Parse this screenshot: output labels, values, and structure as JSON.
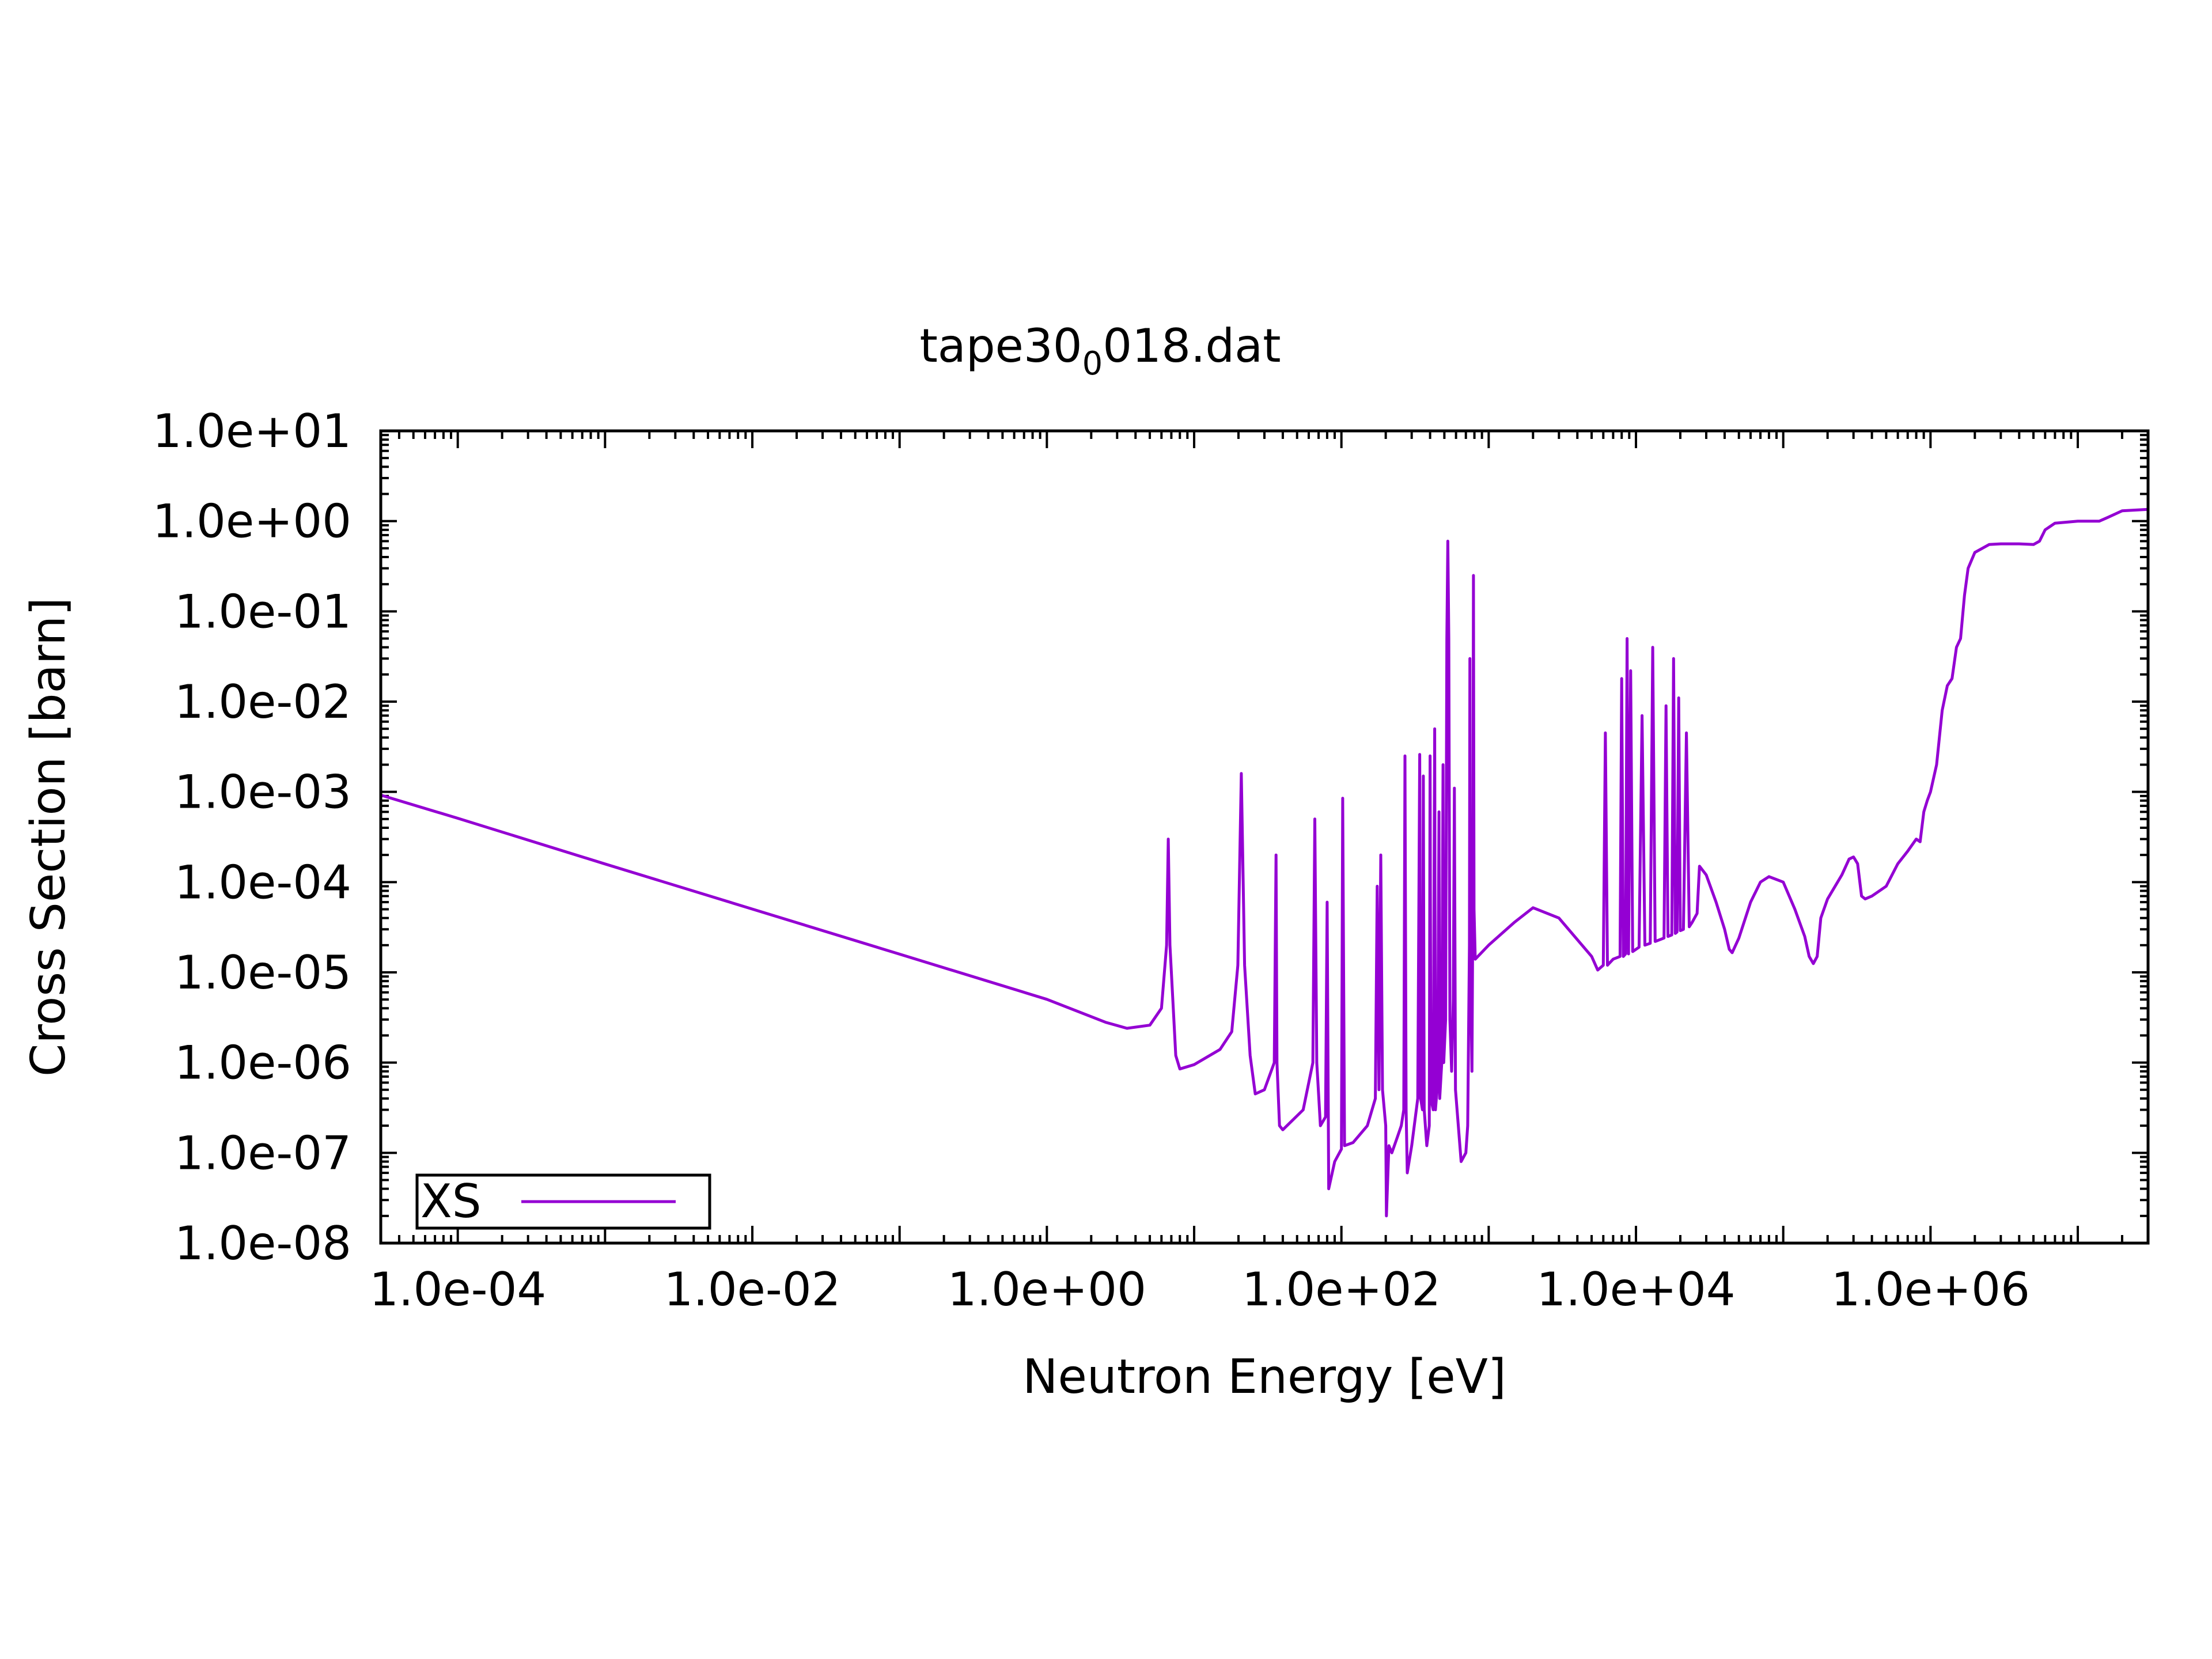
{
  "chart_data": {
    "type": "line",
    "title": "tape30",
    "title_subscript": "0",
    "title_suffix": "018.dat",
    "xlabel": "Neutron Energy [eV]",
    "ylabel": "Cross Section [barn]",
    "xscale": "log",
    "yscale": "log",
    "xlim": [
      3e-05,
      30000000
    ],
    "ylim": [
      1e-08,
      10
    ],
    "grid": false,
    "legend_position": "bottom-left",
    "x_tick_labels": [
      "1.0e-04",
      "1.0e-02",
      "1.0e+00",
      "1.0e+02",
      "1.0e+04",
      "1.0e+06"
    ],
    "x_tick_values": [
      0.0001,
      0.01,
      1,
      100,
      10000,
      1000000
    ],
    "y_tick_labels": [
      "1.0e+01",
      "1.0e+00",
      "1.0e-01",
      "1.0e-02",
      "1.0e-03",
      "1.0e-04",
      "1.0e-05",
      "1.0e-06",
      "1.0e-07",
      "1.0e-08"
    ],
    "y_tick_values": [
      10,
      1,
      0.1,
      0.01,
      0.001,
      0.0001,
      1e-05,
      1e-06,
      1e-07,
      1e-08
    ],
    "series": [
      {
        "name": "XS",
        "color": "#9400d3",
        "points": [
          [
            3e-05,
            0.00092
          ],
          [
            0.0001,
            0.00051
          ],
          [
            0.001,
            0.000159
          ],
          [
            0.01,
            5.03e-05
          ],
          [
            0.1,
            1.59e-05
          ],
          [
            1.0,
            5.03e-06
          ],
          [
            2.5,
            2.8e-06
          ],
          [
            3.5,
            2.4e-06
          ],
          [
            5.0,
            2.6e-06
          ],
          [
            6.0,
            4e-06
          ],
          [
            6.5,
            2e-05
          ],
          [
            6.67,
            0.0003
          ],
          [
            6.85,
            2e-05
          ],
          [
            7.5,
            1.2e-06
          ],
          [
            8.0,
            8.5e-07
          ],
          [
            10,
            9.5e-07
          ],
          [
            15,
            1.4e-06
          ],
          [
            18,
            2.2e-06
          ],
          [
            19.8,
            1.2e-05
          ],
          [
            20.9,
            0.0016
          ],
          [
            22,
            1.2e-05
          ],
          [
            24,
            1.2e-06
          ],
          [
            26,
            4.5e-07
          ],
          [
            30,
            5e-07
          ],
          [
            35,
            1e-06
          ],
          [
            36,
            0.0002
          ],
          [
            36.5,
            1e-06
          ],
          [
            38,
            2e-07
          ],
          [
            40,
            1.8e-07
          ],
          [
            55,
            3e-07
          ],
          [
            64,
            1e-06
          ],
          [
            66,
            0.0005
          ],
          [
            68,
            1e-06
          ],
          [
            72,
            2e-07
          ],
          [
            78,
            2.5e-07
          ],
          [
            80,
            6e-05
          ],
          [
            82,
            4e-08
          ],
          [
            90,
            8e-08
          ],
          [
            100,
            1.1e-07
          ],
          [
            102,
            0.00085
          ],
          [
            105,
            1.2e-07
          ],
          [
            120,
            1.3e-07
          ],
          [
            150,
            2e-07
          ],
          [
            170,
            4e-07
          ],
          [
            175,
            9e-05
          ],
          [
            180,
            5e-07
          ],
          [
            185,
            0.0002
          ],
          [
            190,
            5e-07
          ],
          [
            200,
            2e-07
          ],
          [
            202,
            2e-08
          ],
          [
            210,
            1.2e-07
          ],
          [
            220,
            1e-07
          ],
          [
            240,
            1.5e-07
          ],
          [
            255,
            2e-07
          ],
          [
            265,
            3e-07
          ],
          [
            270,
            0.0025
          ],
          [
            275,
            3e-07
          ],
          [
            280,
            6e-08
          ],
          [
            300,
            1.2e-07
          ],
          [
            330,
            4e-07
          ],
          [
            340,
            0.0026
          ],
          [
            345,
            4e-07
          ],
          [
            355,
            3e-07
          ],
          [
            360,
            0.0015
          ],
          [
            365,
            3e-07
          ],
          [
            380,
            1.2e-07
          ],
          [
            395,
            2e-07
          ],
          [
            400,
            0.0025
          ],
          [
            405,
            4e-07
          ],
          [
            420,
            3e-07
          ],
          [
            430,
            0.005
          ],
          [
            435,
            3e-07
          ],
          [
            450,
            6e-07
          ],
          [
            460,
            0.0006
          ],
          [
            465,
            4e-07
          ],
          [
            480,
            1e-06
          ],
          [
            490,
            0.002
          ],
          [
            495,
            1e-06
          ],
          [
            510,
            3e-06
          ],
          [
            520,
            0.05
          ],
          [
            528,
            0.6
          ],
          [
            536,
            0.05
          ],
          [
            545,
            3e-06
          ],
          [
            560,
            8e-07
          ],
          [
            575,
            5e-06
          ],
          [
            585,
            0.0011
          ],
          [
            595,
            5e-07
          ],
          [
            650,
            8e-08
          ],
          [
            700,
            1e-07
          ],
          [
            720,
            2e-07
          ],
          [
            740,
            2e-05
          ],
          [
            745,
            0.03
          ],
          [
            750,
            2e-05
          ],
          [
            770,
            8e-07
          ],
          [
            780,
            5e-05
          ],
          [
            788,
            0.25
          ],
          [
            795,
            5e-05
          ],
          [
            810,
            1.4e-05
          ],
          [
            1000,
            2e-05
          ],
          [
            1500,
            3.6e-05
          ],
          [
            2000,
            5.2e-05
          ],
          [
            3000,
            4e-05
          ],
          [
            5000,
            1.5e-05
          ],
          [
            5500,
            1.06e-05
          ],
          [
            6000,
            1.2e-05
          ],
          [
            6200,
            0.0045
          ],
          [
            6400,
            1.2e-05
          ],
          [
            7000,
            1.4e-05
          ],
          [
            7800,
            1.5e-05
          ],
          [
            8000,
            0.018
          ],
          [
            8200,
            1.5e-05
          ],
          [
            8500,
            1.6e-05
          ],
          [
            8700,
            0.05
          ],
          [
            8900,
            1.6e-05
          ],
          [
            9200,
            0.022
          ],
          [
            9500,
            1.7e-05
          ],
          [
            10500,
            1.9e-05
          ],
          [
            11000,
            0.007
          ],
          [
            11500,
            2e-05
          ],
          [
            12500,
            2.1e-05
          ],
          [
            13000,
            0.04
          ],
          [
            13500,
            2.2e-05
          ],
          [
            15500,
            2.4e-05
          ],
          [
            16000,
            0.009
          ],
          [
            16500,
            2.5e-05
          ],
          [
            17500,
            2.6e-05
          ],
          [
            18000,
            0.03
          ],
          [
            18500,
            2.7e-05
          ],
          [
            19000,
            2.8e-05
          ],
          [
            19500,
            0.011
          ],
          [
            20000,
            2.9e-05
          ],
          [
            21000,
            3e-05
          ],
          [
            22000,
            0.0045
          ],
          [
            23000,
            3.2e-05
          ],
          [
            24000,
            3.55e-05
          ],
          [
            26000,
            4.5e-05
          ],
          [
            27000,
            0.00015
          ],
          [
            30000,
            0.00012
          ],
          [
            35000,
            6e-05
          ],
          [
            40000,
            3e-05
          ],
          [
            43000,
            1.8e-05
          ],
          [
            45000,
            1.65e-05
          ],
          [
            50000,
            2.4e-05
          ],
          [
            60000,
            6e-05
          ],
          [
            70000,
            0.0001
          ],
          [
            80000,
            0.000115
          ],
          [
            100000,
            0.0001
          ],
          [
            120000,
            5e-05
          ],
          [
            140000,
            2.5e-05
          ],
          [
            150000,
            1.5e-05
          ],
          [
            160000,
            1.25e-05
          ],
          [
            170000,
            1.5e-05
          ],
          [
            180000,
            4e-05
          ],
          [
            200000,
            6.5e-05
          ],
          [
            250000,
            0.00012
          ],
          [
            280000,
            0.00018
          ],
          [
            300000,
            0.00019
          ],
          [
            320000,
            0.00016
          ],
          [
            340000,
            7e-05
          ],
          [
            360000,
            6.5e-05
          ],
          [
            400000,
            7e-05
          ],
          [
            500000,
            9e-05
          ],
          [
            600000,
            0.00016
          ],
          [
            700000,
            0.00022
          ],
          [
            800000,
            0.0003
          ],
          [
            850000,
            0.00028
          ],
          [
            900000,
            0.0006
          ],
          [
            950000,
            0.0008
          ],
          [
            1000000,
            0.001
          ],
          [
            1100000,
            0.002
          ],
          [
            1200000,
            0.008
          ],
          [
            1300000,
            0.015
          ],
          [
            1400000,
            0.018
          ],
          [
            1500000,
            0.04
          ],
          [
            1600000,
            0.05
          ],
          [
            1700000,
            0.15
          ],
          [
            1800000,
            0.3
          ],
          [
            2000000,
            0.45
          ],
          [
            2500000,
            0.55
          ],
          [
            3000000,
            0.56
          ],
          [
            4000000,
            0.56
          ],
          [
            5000000,
            0.55
          ],
          [
            5500000,
            0.6
          ],
          [
            6000000,
            0.8
          ],
          [
            7000000,
            0.95
          ],
          [
            10000000,
            1.0
          ],
          [
            14000000,
            1.0
          ],
          [
            16000000,
            1.1
          ],
          [
            20000000,
            1.3
          ],
          [
            30000000,
            1.35
          ]
        ]
      }
    ]
  }
}
